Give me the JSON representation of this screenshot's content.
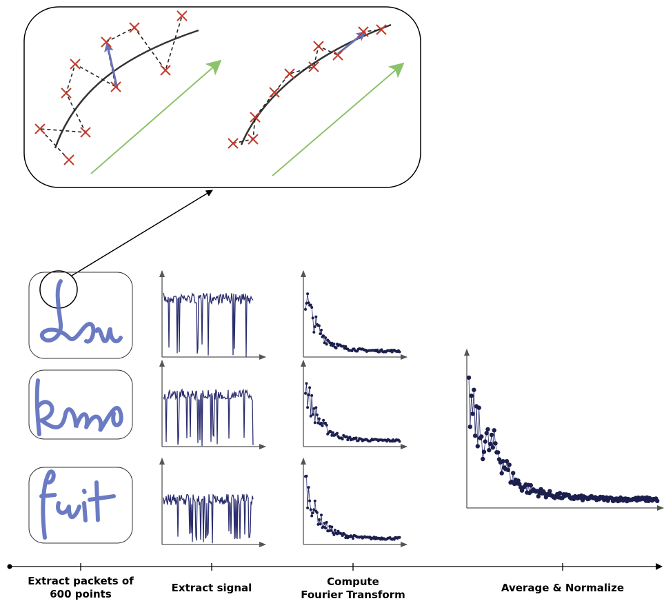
{
  "steps": [
    {
      "lines": [
        "Extract packets of",
        "600 points"
      ]
    },
    {
      "lines": [
        "Extract signal"
      ]
    },
    {
      "lines": [
        "Compute",
        "Fourier Transform"
      ]
    },
    {
      "lines": [
        "Average & Normalize"
      ]
    }
  ]
}
